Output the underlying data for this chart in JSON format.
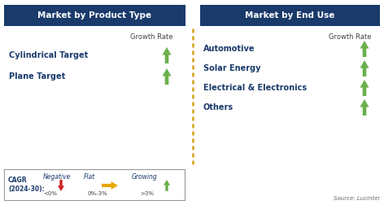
{
  "title_left": "Market by Product Type",
  "title_right": "Market by End Use",
  "header_bg": "#1a3a6b",
  "header_fg": "#ffffff",
  "left_items": [
    "Cylindrical Target",
    "Plane Target"
  ],
  "right_items": [
    "Automotive",
    "Solar Energy",
    "Electrical & Electronics",
    "Others"
  ],
  "item_color": "#1a3a6b",
  "growth_rate_label": "Growth Rate",
  "growth_rate_color": "#444444",
  "arrow_up_color": "#6ab04c",
  "dashed_line_color": "#d4a017",
  "legend_cagr_line1": "CAGR",
  "legend_cagr_line2": "(2024-30):",
  "legend_neg_label": "Negative",
  "legend_neg_sub": "<0%",
  "legend_flat_label": "Flat",
  "legend_flat_sub": "0%-3%",
  "legend_grow_label": "Growing",
  "legend_grow_sub": ">3%",
  "legend_neg_color": "#cc2222",
  "legend_flat_color": "#e6a800",
  "legend_grow_color": "#6ab04c",
  "source_text": "Source: Lucintel",
  "bg_color": "#ffffff",
  "fig_w": 4.72,
  "fig_h": 2.52,
  "dpi": 100
}
